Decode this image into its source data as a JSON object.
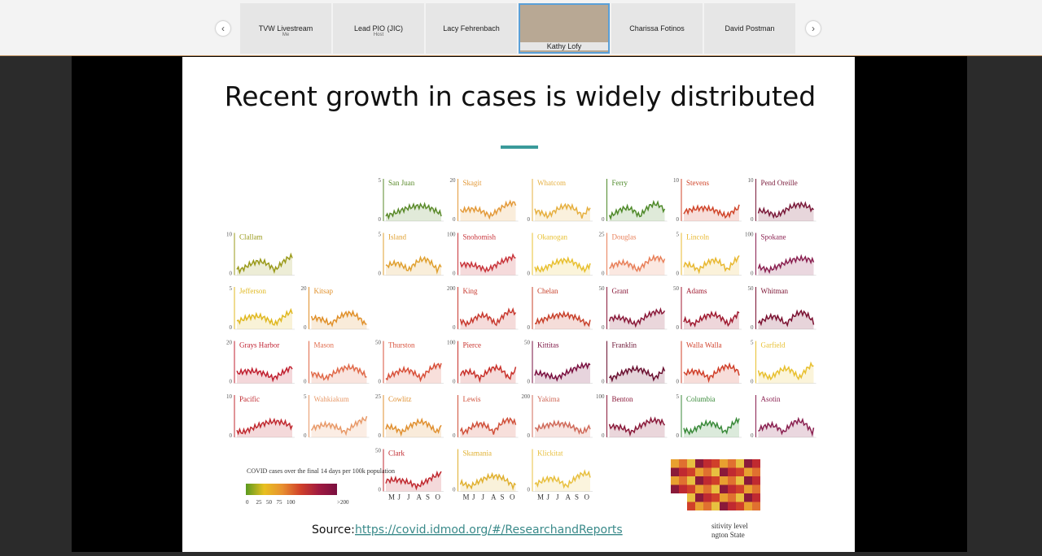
{
  "participants": [
    {
      "name": "TVW Livestream",
      "role": "Me"
    },
    {
      "name": "Lead PIO (JIC)",
      "role": "Host"
    },
    {
      "name": "Lacy Fehrenbach"
    },
    {
      "name": "Kathy Lofy",
      "active": true
    },
    {
      "name": "Charissa Fotinos"
    },
    {
      "name": "David Postman"
    }
  ],
  "slide": {
    "title": "Recent growth in cases is widely distributed",
    "months": [
      "M",
      "J",
      "J",
      "A",
      "S",
      "O"
    ],
    "panels": [
      {
        "name": "San Juan",
        "col": 2,
        "row": 0,
        "ticks": [
          "0",
          "5"
        ],
        "color": "#5a8a2a"
      },
      {
        "name": "Skagit",
        "col": 3,
        "row": 0,
        "ticks": [
          "0",
          "20"
        ],
        "color": "#e39a3a"
      },
      {
        "name": "Whatcom",
        "col": 4,
        "row": 0,
        "ticks": [
          "0"
        ],
        "color": "#e6b040"
      },
      {
        "name": "Ferry",
        "col": 5,
        "row": 0,
        "ticks": [
          "0"
        ],
        "color": "#4f8a2a"
      },
      {
        "name": "Stevens",
        "col": 6,
        "row": 0,
        "ticks": [
          "0",
          "10"
        ],
        "color": "#d0452a"
      },
      {
        "name": "Pend Oreille",
        "col": 7,
        "row": 0,
        "ticks": [
          "0",
          "10"
        ],
        "color": "#7a1a3a"
      },
      {
        "name": "Clallam",
        "col": 0,
        "row": 1,
        "ticks": [
          "0",
          "10"
        ],
        "color": "#9a9a1a"
      },
      {
        "name": "Island",
        "col": 2,
        "row": 1,
        "ticks": [
          "0",
          "5"
        ],
        "color": "#e0a030"
      },
      {
        "name": "Snohomish",
        "col": 3,
        "row": 1,
        "ticks": [
          "0",
          "100"
        ],
        "color": "#c8343a"
      },
      {
        "name": "Okanogan",
        "col": 4,
        "row": 1,
        "ticks": [
          "0"
        ],
        "color": "#e8c030"
      },
      {
        "name": "Douglas",
        "col": 5,
        "row": 1,
        "ticks": [
          "0",
          "25"
        ],
        "color": "#e8805a"
      },
      {
        "name": "Lincoln",
        "col": 6,
        "row": 1,
        "ticks": [
          "0",
          "5"
        ],
        "color": "#e8b830"
      },
      {
        "name": "Spokane",
        "col": 7,
        "row": 1,
        "ticks": [
          "0",
          "100"
        ],
        "color": "#8a2050"
      },
      {
        "name": "Jefferson",
        "col": 0,
        "row": 2,
        "ticks": [
          "0",
          "5"
        ],
        "color": "#e0b820"
      },
      {
        "name": "Kitsap",
        "col": 1,
        "row": 2,
        "ticks": [
          "0",
          "20"
        ],
        "color": "#e0902a"
      },
      {
        "name": "King",
        "col": 3,
        "row": 2,
        "ticks": [
          "0",
          "200"
        ],
        "color": "#c83a30"
      },
      {
        "name": "Chelan",
        "col": 4,
        "row": 2,
        "ticks": [
          "0"
        ],
        "color": "#c8402a"
      },
      {
        "name": "Grant",
        "col": 5,
        "row": 2,
        "ticks": [
          "0",
          "50"
        ],
        "color": "#8a1a3a"
      },
      {
        "name": "Adams",
        "col": 6,
        "row": 2,
        "ticks": [
          "0",
          "50"
        ],
        "color": "#a01a30"
      },
      {
        "name": "Whitman",
        "col": 7,
        "row": 2,
        "ticks": [
          "0",
          "50"
        ],
        "color": "#7a1030"
      },
      {
        "name": "Grays Harbor",
        "col": 0,
        "row": 3,
        "ticks": [
          "0",
          "20"
        ],
        "color": "#c02030"
      },
      {
        "name": "Mason",
        "col": 1,
        "row": 3,
        "ticks": [
          "0"
        ],
        "color": "#e06a4a"
      },
      {
        "name": "Thurston",
        "col": 2,
        "row": 3,
        "ticks": [
          "0",
          "50"
        ],
        "color": "#d8503a"
      },
      {
        "name": "Pierce",
        "col": 3,
        "row": 3,
        "ticks": [
          "0",
          "100"
        ],
        "color": "#c8302a"
      },
      {
        "name": "Kittitas",
        "col": 4,
        "row": 3,
        "ticks": [
          "0",
          "50"
        ],
        "color": "#7a1040"
      },
      {
        "name": "Franklin",
        "col": 5,
        "row": 3,
        "ticks": [
          "0"
        ],
        "color": "#6a1030"
      },
      {
        "name": "Walla Walla",
        "col": 6,
        "row": 3,
        "ticks": [
          "0"
        ],
        "color": "#d0402a"
      },
      {
        "name": "Garfield",
        "col": 7,
        "row": 3,
        "ticks": [
          "0",
          "5"
        ],
        "color": "#e8c030"
      },
      {
        "name": "Pacific",
        "col": 0,
        "row": 4,
        "ticks": [
          "0",
          "10"
        ],
        "color": "#c02a30"
      },
      {
        "name": "Wahkiakum",
        "col": 1,
        "row": 4,
        "ticks": [
          "0",
          "5"
        ],
        "color": "#e89a6a"
      },
      {
        "name": "Cowlitz",
        "col": 2,
        "row": 4,
        "ticks": [
          "0",
          "25"
        ],
        "color": "#e09030"
      },
      {
        "name": "Lewis",
        "col": 3,
        "row": 4,
        "ticks": [
          "0"
        ],
        "color": "#d0503a"
      },
      {
        "name": "Yakima",
        "col": 4,
        "row": 4,
        "ticks": [
          "0",
          "200"
        ],
        "color": "#d06a5a"
      },
      {
        "name": "Benton",
        "col": 5,
        "row": 4,
        "ticks": [
          "0",
          "100"
        ],
        "color": "#8a1a3a"
      },
      {
        "name": "Columbia",
        "col": 6,
        "row": 4,
        "ticks": [
          "0",
          "5"
        ],
        "color": "#3a8a3a"
      },
      {
        "name": "Asotin",
        "col": 7,
        "row": 4,
        "ticks": [
          "0"
        ],
        "color": "#8a2050"
      },
      {
        "name": "Clark",
        "col": 2,
        "row": 5,
        "ticks": [
          "0",
          "50"
        ],
        "color": "#c02a30"
      },
      {
        "name": "Skamania",
        "col": 3,
        "row": 5,
        "ticks": [
          "0"
        ],
        "color": "#e0b030"
      },
      {
        "name": "Klickitat",
        "col": 4,
        "row": 5,
        "ticks": [
          "0"
        ],
        "color": "#e8c040"
      }
    ],
    "legend": {
      "title": "COVID cases over the final 14 days per 100k population",
      "ticks": [
        "0",
        "25",
        "50",
        "75",
        "100",
        ">200"
      ]
    },
    "map_caption": [
      "sitivity level",
      "ngton State"
    ],
    "source_label": "Source:",
    "source_link": "https://covid.idmod.org/#/ResearchandReports"
  }
}
